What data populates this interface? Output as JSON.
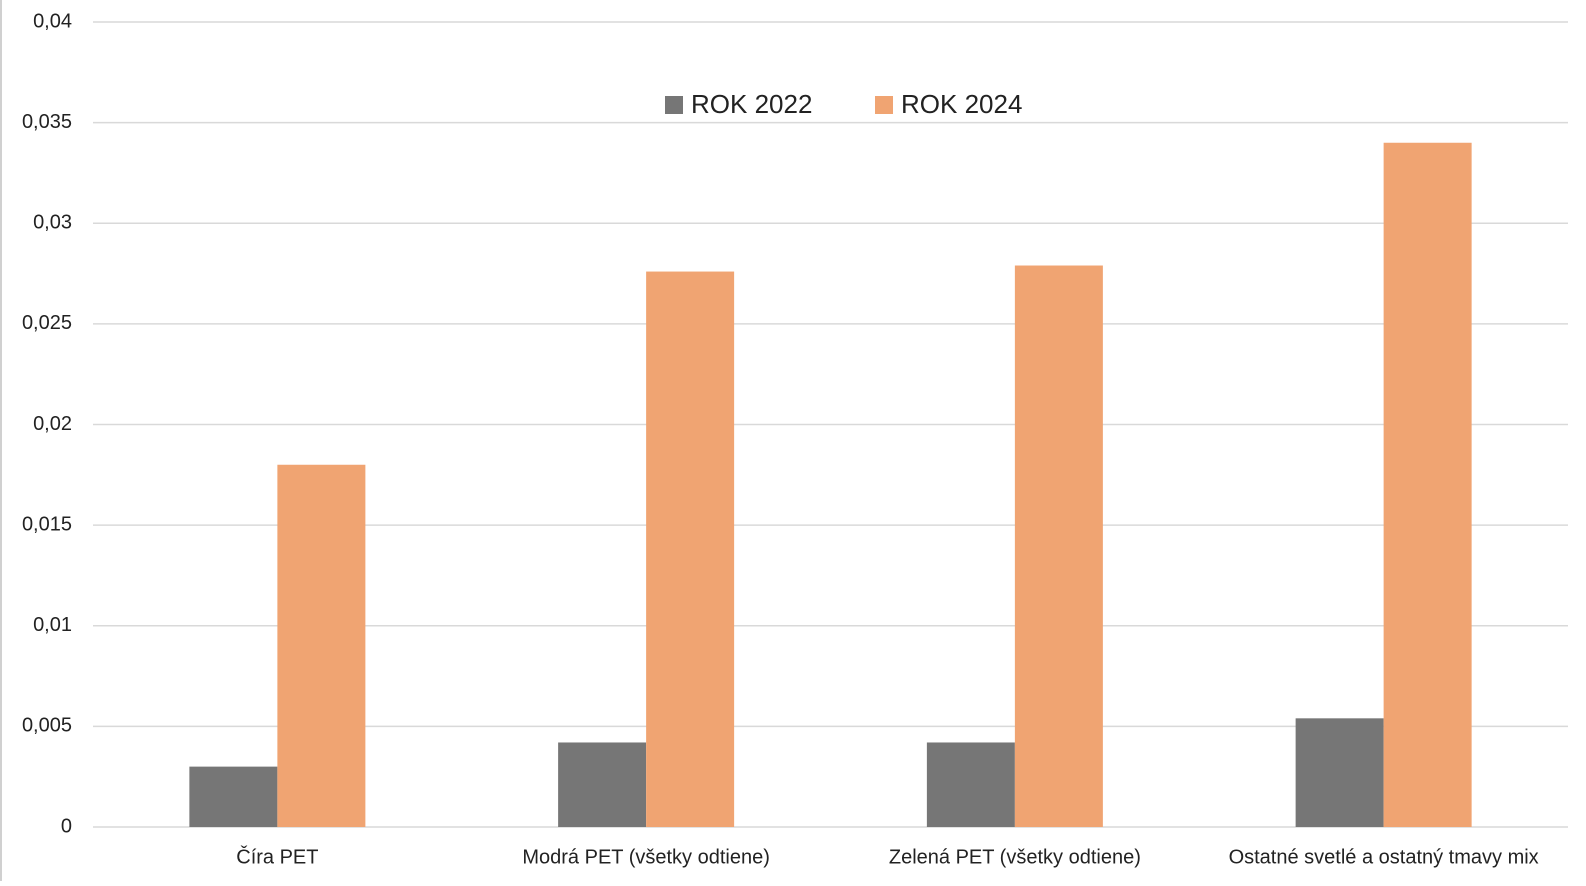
{
  "chart_data": {
    "type": "bar",
    "categories": [
      "Číra PET",
      "Modrá PET (všetky odtiene)",
      "Zelená PET (všetky odtiene)",
      "Ostatné svetlé a ostatný tmavy mix"
    ],
    "series": [
      {
        "name": "ROK 2022",
        "color": "#767676",
        "values": [
          0.003,
          0.0042,
          0.0042,
          0.0054
        ]
      },
      {
        "name": "ROK 2024",
        "color": "#f0a472",
        "values": [
          0.018,
          0.0276,
          0.0279,
          0.034
        ]
      }
    ],
    "ylim": [
      0,
      0.04
    ],
    "yticks": [
      0,
      {
        "value": 0.005,
        "label": "0,005"
      },
      {
        "value": 0.01,
        "label": "0,01"
      },
      {
        "value": 0.015,
        "label": "0,015"
      },
      {
        "value": 0.02,
        "label": "0,02"
      },
      {
        "value": 0.025,
        "label": "0,025"
      },
      {
        "value": 0.03,
        "label": "0,03"
      },
      {
        "value": 0.035,
        "label": "0,035"
      },
      {
        "value": 0.04,
        "label": "0,04"
      }
    ],
    "grid": true,
    "legend": "top"
  }
}
